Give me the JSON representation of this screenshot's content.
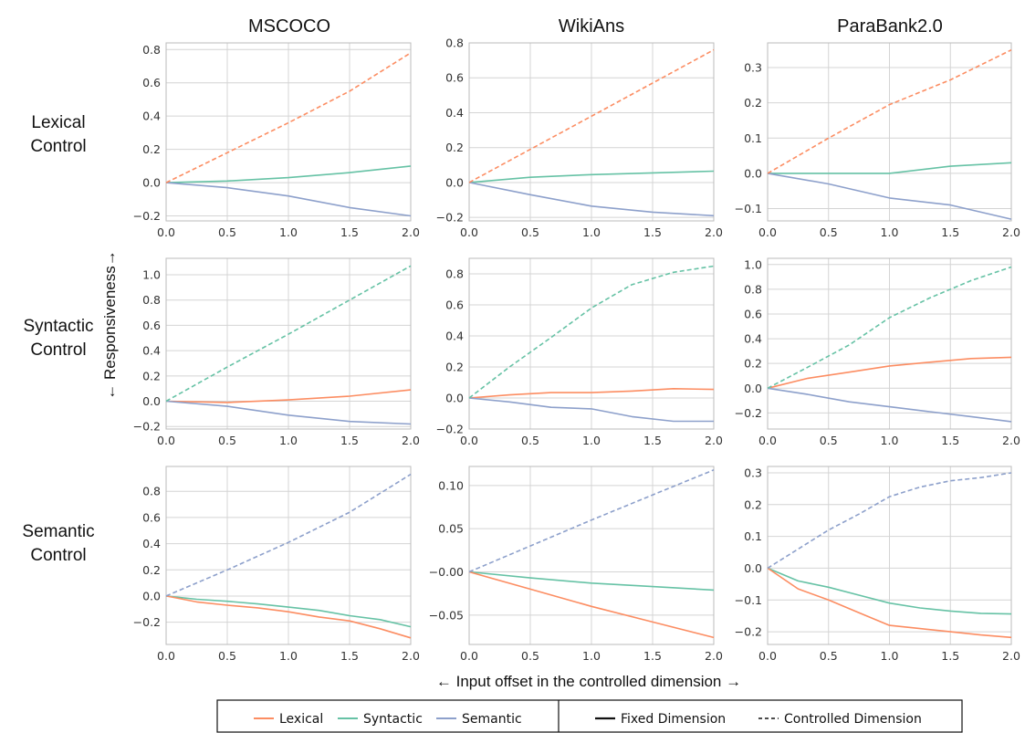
{
  "column_titles": [
    "MSCOCO",
    "WikiAns",
    "ParaBank2.0"
  ],
  "row_titles": [
    [
      "Lexical",
      "Control"
    ],
    [
      "Syntactic",
      "Control"
    ],
    [
      "Semantic",
      "Control"
    ]
  ],
  "xlabel": "← Input offset in the controlled dimension →",
  "ylabel": "← Responsiveness→",
  "legend": {
    "series": [
      {
        "name": "Lexical",
        "color": "#fc8d62"
      },
      {
        "name": "Syntactic",
        "color": "#66c2a5"
      },
      {
        "name": "Semantic",
        "color": "#8da0cb"
      }
    ],
    "styles": [
      {
        "name": "Fixed Dimension",
        "dash": "solid"
      },
      {
        "name": "Controlled Dimension",
        "dash": "dashed"
      }
    ]
  },
  "colors": {
    "lexical": "#fc8d62",
    "syntactic": "#66c2a5",
    "semantic": "#8da0cb",
    "grid": "#d4d4d4",
    "axis": "#bbbbbb"
  },
  "chart_data": [
    {
      "type": "line",
      "row": 0,
      "col": 0,
      "title": "MSCOCO",
      "controlled": "Lexical",
      "xlim": [
        0,
        2
      ],
      "ylim": [
        -0.23,
        0.84
      ],
      "xticks": [
        0.0,
        0.5,
        1.0,
        1.5,
        2.0
      ],
      "xtick_labels": [
        "0.0",
        "0.5",
        "1.0",
        "1.5",
        "2.0"
      ],
      "yticks": [
        -0.2,
        0.0,
        0.2,
        0.4,
        0.6,
        0.8
      ],
      "ytick_labels": [
        "−0.2",
        "0.0",
        "0.2",
        "0.4",
        "0.6",
        "0.8"
      ],
      "series": [
        {
          "name": "Lexical",
          "dashed": true,
          "x": [
            0,
            0.5,
            1.0,
            1.5,
            2.0
          ],
          "y": [
            0.0,
            0.18,
            0.36,
            0.55,
            0.78
          ]
        },
        {
          "name": "Syntactic",
          "dashed": false,
          "x": [
            0,
            0.5,
            1.0,
            1.5,
            2.0
          ],
          "y": [
            0.0,
            0.01,
            0.03,
            0.06,
            0.1
          ]
        },
        {
          "name": "Semantic",
          "dashed": false,
          "x": [
            0,
            0.5,
            1.0,
            1.5,
            2.0
          ],
          "y": [
            0.0,
            -0.03,
            -0.08,
            -0.15,
            -0.2
          ]
        }
      ]
    },
    {
      "type": "line",
      "row": 0,
      "col": 1,
      "title": "WikiAns",
      "controlled": "Lexical",
      "xlim": [
        0,
        2
      ],
      "ylim": [
        -0.22,
        0.8
      ],
      "xticks": [
        0.0,
        0.5,
        1.0,
        1.5,
        2.0
      ],
      "xtick_labels": [
        "0.0",
        "0.5",
        "1.0",
        "1.5",
        "2.0"
      ],
      "yticks": [
        -0.2,
        0.0,
        0.2,
        0.4,
        0.6,
        0.8
      ],
      "ytick_labels": [
        "−0.2",
        "0.0",
        "0.2",
        "0.4",
        "0.6",
        "0.8"
      ],
      "series": [
        {
          "name": "Lexical",
          "dashed": true,
          "x": [
            0,
            0.5,
            1.0,
            1.5,
            2.0
          ],
          "y": [
            0.0,
            0.19,
            0.38,
            0.57,
            0.76
          ]
        },
        {
          "name": "Syntactic",
          "dashed": false,
          "x": [
            0,
            0.5,
            1.0,
            1.5,
            2.0
          ],
          "y": [
            0.0,
            0.03,
            0.045,
            0.055,
            0.065
          ]
        },
        {
          "name": "Semantic",
          "dashed": false,
          "x": [
            0,
            0.5,
            1.0,
            1.5,
            2.0
          ],
          "y": [
            0.0,
            -0.07,
            -0.135,
            -0.17,
            -0.19
          ]
        }
      ]
    },
    {
      "type": "line",
      "row": 0,
      "col": 2,
      "title": "ParaBank2.0",
      "controlled": "Lexical",
      "xlim": [
        0,
        2
      ],
      "ylim": [
        -0.135,
        0.37
      ],
      "xticks": [
        0.0,
        0.5,
        1.0,
        1.5,
        2.0
      ],
      "xtick_labels": [
        "0.0",
        "0.5",
        "1.0",
        "1.5",
        "2.0"
      ],
      "yticks": [
        -0.1,
        0.0,
        0.1,
        0.2,
        0.3
      ],
      "ytick_labels": [
        "−0.1",
        "0.0",
        "0.1",
        "0.2",
        "0.3"
      ],
      "series": [
        {
          "name": "Lexical",
          "dashed": true,
          "x": [
            0,
            0.5,
            1.0,
            1.5,
            2.0
          ],
          "y": [
            0.0,
            0.1,
            0.195,
            0.265,
            0.35
          ]
        },
        {
          "name": "Syntactic",
          "dashed": false,
          "x": [
            0,
            0.5,
            1.0,
            1.5,
            2.0
          ],
          "y": [
            0.0,
            0.0,
            0.0,
            0.02,
            0.03
          ]
        },
        {
          "name": "Semantic",
          "dashed": false,
          "x": [
            0,
            0.5,
            1.0,
            1.5,
            2.0
          ],
          "y": [
            0.0,
            -0.03,
            -0.07,
            -0.09,
            -0.13
          ]
        }
      ]
    },
    {
      "type": "line",
      "row": 1,
      "col": 0,
      "title": "MSCOCO",
      "controlled": "Syntactic",
      "xlim": [
        0,
        2
      ],
      "ylim": [
        -0.22,
        1.13
      ],
      "xticks": [
        0.0,
        0.5,
        1.0,
        1.5,
        2.0
      ],
      "xtick_labels": [
        "0.0",
        "0.5",
        "1.0",
        "1.5",
        "2.0"
      ],
      "yticks": [
        -0.2,
        0.0,
        0.2,
        0.4,
        0.6,
        0.8,
        1.0
      ],
      "ytick_labels": [
        "−0.2",
        "0.0",
        "0.2",
        "0.4",
        "0.6",
        "0.8",
        "1.0"
      ],
      "series": [
        {
          "name": "Syntactic",
          "dashed": true,
          "x": [
            0,
            0.5,
            1.0,
            1.5,
            2.0
          ],
          "y": [
            0.0,
            0.27,
            0.53,
            0.8,
            1.07
          ]
        },
        {
          "name": "Lexical",
          "dashed": false,
          "x": [
            0,
            0.5,
            1.0,
            1.5,
            2.0
          ],
          "y": [
            0.0,
            -0.01,
            0.01,
            0.04,
            0.09
          ]
        },
        {
          "name": "Semantic",
          "dashed": false,
          "x": [
            0,
            0.5,
            1.0,
            1.5,
            2.0
          ],
          "y": [
            0.0,
            -0.04,
            -0.11,
            -0.16,
            -0.18
          ]
        }
      ]
    },
    {
      "type": "line",
      "row": 1,
      "col": 1,
      "title": "WikiAns",
      "controlled": "Syntactic",
      "xlim": [
        0,
        2
      ],
      "ylim": [
        -0.2,
        0.9
      ],
      "xticks": [
        0.0,
        0.5,
        1.0,
        1.5,
        2.0
      ],
      "xtick_labels": [
        "0.0",
        "0.5",
        "1.0",
        "1.5",
        "2.0"
      ],
      "yticks": [
        -0.2,
        0.0,
        0.2,
        0.4,
        0.6,
        0.8
      ],
      "ytick_labels": [
        "−0.2",
        "0.0",
        "0.2",
        "0.4",
        "0.6",
        "0.8"
      ],
      "series": [
        {
          "name": "Syntactic",
          "dashed": true,
          "x": [
            0,
            0.33,
            0.67,
            1.0,
            1.33,
            1.67,
            2.0
          ],
          "y": [
            0.0,
            0.2,
            0.39,
            0.58,
            0.73,
            0.81,
            0.85
          ]
        },
        {
          "name": "Lexical",
          "dashed": false,
          "x": [
            0,
            0.33,
            0.67,
            1.0,
            1.33,
            1.67,
            2.0
          ],
          "y": [
            0.0,
            0.02,
            0.035,
            0.035,
            0.045,
            0.06,
            0.055
          ]
        },
        {
          "name": "Semantic",
          "dashed": false,
          "x": [
            0,
            0.33,
            0.67,
            1.0,
            1.33,
            1.67,
            2.0
          ],
          "y": [
            0.0,
            -0.025,
            -0.06,
            -0.07,
            -0.12,
            -0.15,
            -0.15
          ]
        }
      ]
    },
    {
      "type": "line",
      "row": 1,
      "col": 2,
      "title": "ParaBank2.0",
      "controlled": "Syntactic",
      "xlim": [
        0,
        2
      ],
      "ylim": [
        -0.33,
        1.05
      ],
      "xticks": [
        0.0,
        0.5,
        1.0,
        1.5,
        2.0
      ],
      "xtick_labels": [
        "0.0",
        "0.5",
        "1.0",
        "1.5",
        "2.0"
      ],
      "yticks": [
        -0.2,
        0.0,
        0.2,
        0.4,
        0.6,
        0.8,
        1.0
      ],
      "ytick_labels": [
        "−0.2",
        "0.0",
        "0.2",
        "0.4",
        "0.6",
        "0.8",
        "1.0"
      ],
      "series": [
        {
          "name": "Syntactic",
          "dashed": true,
          "x": [
            0,
            0.33,
            0.67,
            1.0,
            1.33,
            1.67,
            2.0
          ],
          "y": [
            0.0,
            0.17,
            0.35,
            0.57,
            0.73,
            0.87,
            0.98
          ]
        },
        {
          "name": "Lexical",
          "dashed": false,
          "x": [
            0,
            0.33,
            0.67,
            1.0,
            1.33,
            1.67,
            2.0
          ],
          "y": [
            0.0,
            0.08,
            0.13,
            0.18,
            0.21,
            0.24,
            0.25
          ]
        },
        {
          "name": "Semantic",
          "dashed": false,
          "x": [
            0,
            0.33,
            0.67,
            1.0,
            1.33,
            1.67,
            2.0
          ],
          "y": [
            0.0,
            -0.05,
            -0.11,
            -0.15,
            -0.19,
            -0.23,
            -0.27
          ]
        }
      ]
    },
    {
      "type": "line",
      "row": 2,
      "col": 0,
      "title": "MSCOCO",
      "controlled": "Semantic",
      "xlim": [
        0,
        2
      ],
      "ylim": [
        -0.37,
        0.99
      ],
      "xticks": [
        0.0,
        0.5,
        1.0,
        1.5,
        2.0
      ],
      "xtick_labels": [
        "0.0",
        "0.5",
        "1.0",
        "1.5",
        "2.0"
      ],
      "yticks": [
        -0.2,
        0.0,
        0.2,
        0.4,
        0.6,
        0.8
      ],
      "ytick_labels": [
        "−0.2",
        "0.0",
        "0.2",
        "0.4",
        "0.6",
        "0.8"
      ],
      "series": [
        {
          "name": "Semantic",
          "dashed": true,
          "x": [
            0,
            0.5,
            1.0,
            1.5,
            2.0
          ],
          "y": [
            0.0,
            0.2,
            0.41,
            0.64,
            0.93
          ]
        },
        {
          "name": "Syntactic",
          "dashed": false,
          "x": [
            0,
            0.25,
            0.5,
            0.75,
            1.0,
            1.25,
            1.5,
            1.75,
            2.0
          ],
          "y": [
            0.0,
            -0.025,
            -0.04,
            -0.06,
            -0.085,
            -0.11,
            -0.15,
            -0.18,
            -0.235
          ]
        },
        {
          "name": "Lexical",
          "dashed": false,
          "x": [
            0,
            0.25,
            0.5,
            0.75,
            1.0,
            1.25,
            1.5,
            1.75,
            2.0
          ],
          "y": [
            0.0,
            -0.045,
            -0.07,
            -0.09,
            -0.12,
            -0.16,
            -0.19,
            -0.25,
            -0.32
          ]
        }
      ]
    },
    {
      "type": "line",
      "row": 2,
      "col": 1,
      "title": "WikiAns",
      "controlled": "Semantic",
      "xlim": [
        0,
        2
      ],
      "ylim": [
        -0.084,
        0.122
      ],
      "xticks": [
        0.0,
        0.5,
        1.0,
        1.5,
        2.0
      ],
      "xtick_labels": [
        "0.0",
        "0.5",
        "1.0",
        "1.5",
        "2.0"
      ],
      "yticks": [
        -0.05,
        0.0,
        0.05,
        0.1
      ],
      "ytick_labels": [
        "−0.05",
        "−0.00",
        "0.05",
        "0.10"
      ],
      "series": [
        {
          "name": "Semantic",
          "dashed": true,
          "x": [
            0,
            0.5,
            1.0,
            1.5,
            2.0
          ],
          "y": [
            0.0,
            0.03,
            0.06,
            0.089,
            0.118
          ]
        },
        {
          "name": "Syntactic",
          "dashed": false,
          "x": [
            0,
            0.5,
            1.0,
            1.5,
            2.0
          ],
          "y": [
            0.0,
            -0.007,
            -0.013,
            -0.017,
            -0.021
          ]
        },
        {
          "name": "Lexical",
          "dashed": false,
          "x": [
            0,
            0.5,
            1.0,
            1.5,
            2.0
          ],
          "y": [
            0.0,
            -0.02,
            -0.04,
            -0.058,
            -0.076
          ]
        }
      ]
    },
    {
      "type": "line",
      "row": 2,
      "col": 2,
      "title": "ParaBank2.0",
      "controlled": "Semantic",
      "xlim": [
        0,
        2
      ],
      "ylim": [
        -0.24,
        0.32
      ],
      "xticks": [
        0.0,
        0.5,
        1.0,
        1.5,
        2.0
      ],
      "xtick_labels": [
        "0.0",
        "0.5",
        "1.0",
        "1.5",
        "2.0"
      ],
      "yticks": [
        -0.2,
        -0.1,
        0.0,
        0.1,
        0.2,
        0.3
      ],
      "ytick_labels": [
        "−0.2",
        "−0.1",
        "0.0",
        "0.1",
        "0.2",
        "0.3"
      ],
      "series": [
        {
          "name": "Semantic",
          "dashed": true,
          "x": [
            0,
            0.25,
            0.5,
            0.75,
            1.0,
            1.25,
            1.5,
            1.75,
            2.0
          ],
          "y": [
            0.0,
            0.06,
            0.12,
            0.17,
            0.225,
            0.255,
            0.275,
            0.285,
            0.3
          ]
        },
        {
          "name": "Syntactic",
          "dashed": false,
          "x": [
            0,
            0.25,
            0.5,
            0.75,
            1.0,
            1.25,
            1.5,
            1.75,
            2.0
          ],
          "y": [
            0.0,
            -0.04,
            -0.06,
            -0.085,
            -0.11,
            -0.125,
            -0.135,
            -0.142,
            -0.144
          ]
        },
        {
          "name": "Lexical",
          "dashed": false,
          "x": [
            0,
            0.25,
            0.5,
            0.75,
            1.0,
            1.25,
            1.5,
            1.75,
            2.0
          ],
          "y": [
            0.0,
            -0.065,
            -0.1,
            -0.14,
            -0.18,
            -0.19,
            -0.2,
            -0.21,
            -0.218
          ]
        }
      ]
    }
  ]
}
